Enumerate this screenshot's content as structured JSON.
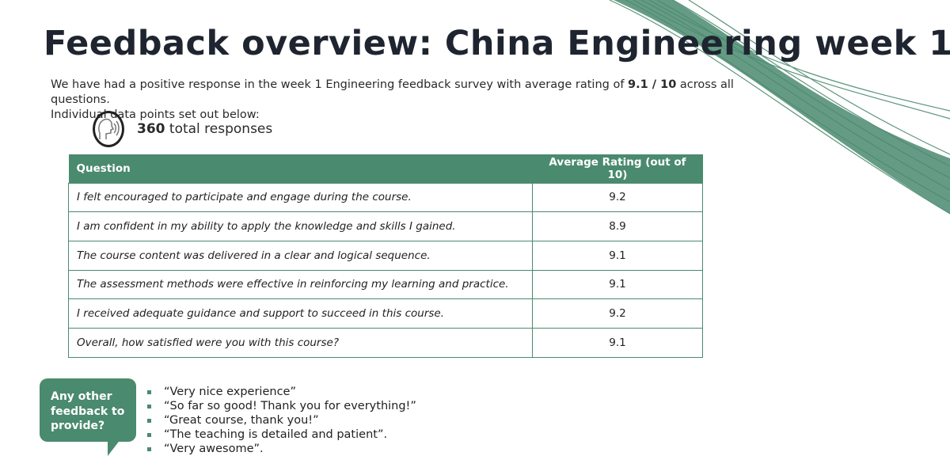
{
  "title": "Feedback overview: China Engineering week 1",
  "intro": {
    "pre": "We have had a positive response in the week 1 Engineering feedback survey with average rating of ",
    "rating": "9.1 / 10",
    "post": " across all questions.",
    "line2": "Individual data points set out below:"
  },
  "responses": {
    "count": "360",
    "label": " total responses",
    "icon": "speaking-head-icon"
  },
  "table": {
    "headers": [
      "Question",
      "Average Rating (out of 10)"
    ],
    "rows": [
      {
        "q": "I felt encouraged to participate and engage during the course.",
        "v": "9.2"
      },
      {
        "q": "I am confident in my ability to apply the knowledge and skills I gained.",
        "v": "8.9"
      },
      {
        "q": "The course content was delivered in a clear and logical sequence.",
        "v": "9.1"
      },
      {
        "q": "The assessment methods were effective in reinforcing my learning and practice.",
        "v": "9.1"
      },
      {
        "q": "I received adequate guidance and support to succeed in this course.",
        "v": "9.2"
      },
      {
        "q": "Overall, how satisfied were you with this course?",
        "v": "9.1"
      }
    ]
  },
  "feedback": {
    "prompt": "Any other feedback to provide?",
    "comments": [
      "“Very nice experience”",
      "“So far so good! Thank you for everything!”",
      "“Great course, thank you!”",
      "“The teaching is detailed and patient”.",
      "“Very awesome”."
    ]
  },
  "colors": {
    "accent": "#4a8a6e"
  }
}
